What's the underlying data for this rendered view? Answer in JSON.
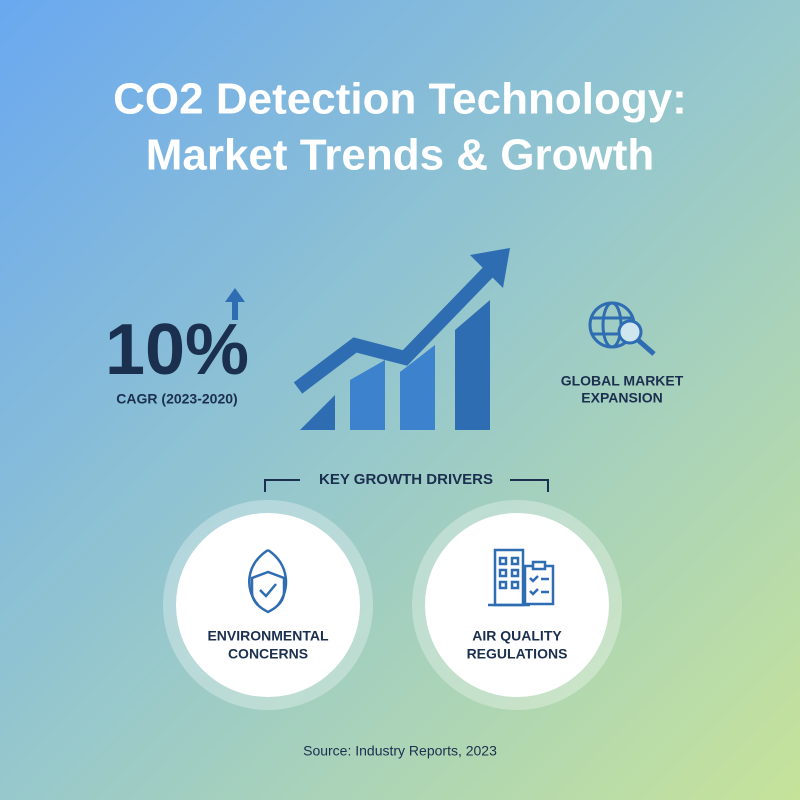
{
  "header": {
    "title_lines": [
      "CO2 Detection Technology:",
      "Market Trends & Growth"
    ]
  },
  "stat": {
    "value": "10%",
    "label": "CAGR (2023-2020)"
  },
  "market": {
    "label_lines": [
      "GLOBAL MARKET",
      "EXPANSION"
    ]
  },
  "drivers": {
    "heading": "KEY GROWTH DRIVERS",
    "items": [
      {
        "label_lines": [
          "ENVIRONMENTAL",
          "CONCERNS"
        ]
      },
      {
        "label_lines": [
          "AIR QUALITY",
          "REGULATIONS"
        ]
      }
    ]
  },
  "footer": {
    "source": "Source: Industry Reports, 2023"
  }
}
